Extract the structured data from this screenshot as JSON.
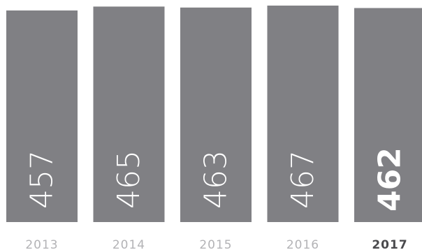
{
  "chart_data": {
    "type": "bar",
    "categories": [
      "2013",
      "2014",
      "2015",
      "2016",
      "2017"
    ],
    "values": [
      457,
      465,
      463,
      467,
      462
    ],
    "highlight_index": 4,
    "colors": {
      "bar": "#808084",
      "value_label": "#ffffff",
      "category_label": "#b3b3b6",
      "category_label_highlight": "#4a4a4d"
    }
  }
}
